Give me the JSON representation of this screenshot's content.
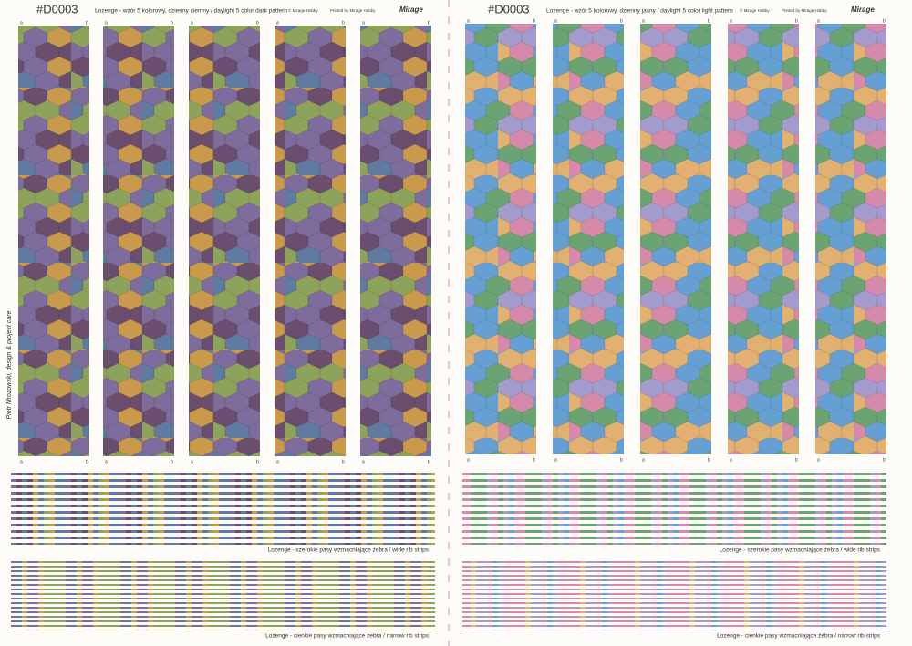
{
  "sheets": [
    {
      "code": "#D0003",
      "title": "Lozenge - wzór 5 kolorowy, dzienny ciemny / daylight 5 color dark pattern",
      "copyright": "© Mirage Hobby",
      "printer": "Printed by Mirage Hobby",
      "logo": "Mirage",
      "wide_strips_label": "Lozenge - szerokie pasy wzmacniające żebra / wide rib strips",
      "narrow_strips_label": "Lozenge - cienkie pasy wzmacniające żebra / narrow rib strips"
    },
    {
      "code": "#D0003",
      "title": "Lozenge - wzór 5 kolorowy, dzienny jasny / daylight 5 color light pattern",
      "copyright": "© Mirage Hobby",
      "printer": "Printed by Mirage Hobby",
      "logo": "Mirage",
      "wide_strips_label": "Lozenge - szerokie pasy wzmacniające żebra / wide rib strips",
      "narrow_strips_label": "Lozenge - cienkie pasy wzmacniające żebra / narrow rib strips"
    }
  ],
  "designer": "Piotr Mrozowski, design & project care",
  "strip_ends": [
    "a",
    "b"
  ]
}
